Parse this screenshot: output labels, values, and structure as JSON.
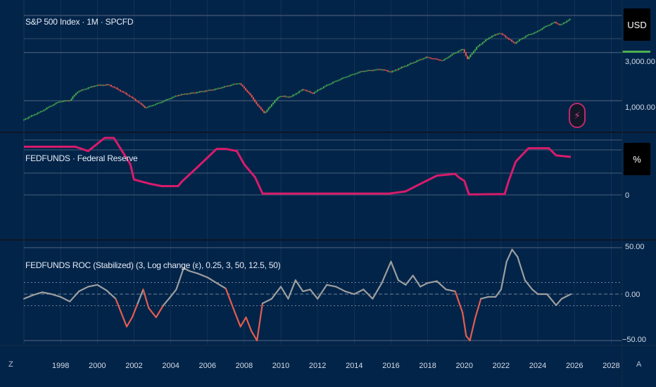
{
  "panes": {
    "price": {
      "title": "S&P 500 Index · 1M · SPCFD",
      "unit": "USD",
      "ticks": [
        "3,000.00",
        "1,000.00"
      ]
    },
    "fed": {
      "title": "FEDFUNDS · Federal Reserve",
      "unit": "%",
      "ticks": [
        "0"
      ]
    },
    "roc": {
      "title": "FEDFUNDS ROC (Stabilized) (3, Log change (ε), 0.25, 3, 50, 12.5, 50)",
      "ticks": [
        "50.00",
        "0.00",
        "−50.00"
      ]
    }
  },
  "controls": {
    "left": "Z",
    "right": "A"
  },
  "colors": {
    "background": "#022449",
    "grid": "#55657e",
    "candle_up": "#4caf50",
    "candle_down": "#ef5350",
    "fed_line": "#d81b6b",
    "roc_line": "#9e9e9e",
    "roc_negative": "#e35d4f",
    "level_line": "#4caf50"
  },
  "chart_data": [
    {
      "type": "line",
      "title": "S&P 500 Index · 1M · SPCFD",
      "ylabel": "USD",
      "yscale": "log",
      "ylim": [
        600,
        7000
      ],
      "xlim": [
        1996.0,
        2028.6
      ],
      "x_ticks": [
        1998,
        2000,
        2002,
        2004,
        2006,
        2008,
        2010,
        2012,
        2014,
        2016,
        2018,
        2020,
        2022,
        2024,
        2026,
        2028
      ],
      "y_ticks": [
        1000,
        3000
      ],
      "series": [
        {
          "x": [
            1996.0,
            1997.0,
            1998.0,
            1998.6,
            1999.0,
            2000.0,
            2000.7,
            2001.7,
            2002.7,
            2003.5,
            2004.5,
            2005.5,
            2006.5,
            2007.8,
            2008.8,
            2009.2,
            2010.0,
            2010.6,
            2011.3,
            2011.8,
            2012.5,
            2013.5,
            2014.5,
            2015.5,
            2016.1,
            2017.0,
            2018.0,
            2018.9,
            2019.5,
            2020.0,
            2020.25,
            2020.8,
            2021.5,
            2022.0,
            2022.8,
            2023.5,
            2024.0,
            2024.5,
            2025.0,
            2025.3,
            2025.8
          ],
          "y": [
            640,
            780,
            980,
            1010,
            1230,
            1420,
            1440,
            1150,
            850,
            960,
            1140,
            1210,
            1300,
            1500,
            900,
            750,
            1110,
            1090,
            1300,
            1180,
            1400,
            1690,
            1960,
            2050,
            1930,
            2270,
            2700,
            2500,
            2940,
            3250,
            2580,
            3450,
            4300,
            4700,
            3700,
            4450,
            4800,
            5450,
            6000,
            5600,
            6400
          ]
        }
      ]
    },
    {
      "type": "line",
      "title": "FEDFUNDS · Federal Reserve",
      "ylabel": "%",
      "ylim": [
        0,
        6.5
      ],
      "xlim": [
        1996.0,
        2028.6
      ],
      "y_ticks": [
        0
      ],
      "series": [
        {
          "x": [
            1996.0,
            1998.8,
            1999.5,
            2000.4,
            2000.9,
            2001.2,
            2001.8,
            2002.0,
            2002.9,
            2003.5,
            2004.4,
            2004.6,
            2005.5,
            2006.5,
            2007.0,
            2007.6,
            2008.0,
            2008.6,
            2009.0,
            2015.9,
            2016.8,
            2017.5,
            2018.5,
            2019.5,
            2019.7,
            2020.0,
            2020.25,
            2022.2,
            2022.4,
            2022.8,
            2023.5,
            2024.6,
            2025.0,
            2025.8
          ],
          "y": [
            5.5,
            5.5,
            5.0,
            6.5,
            6.5,
            5.5,
            3.5,
            1.75,
            1.25,
            1.0,
            1.0,
            1.5,
            3.25,
            5.25,
            5.25,
            5.0,
            3.5,
            2.0,
            0.15,
            0.15,
            0.4,
            1.15,
            2.2,
            2.4,
            2.0,
            1.6,
            0.05,
            0.1,
            1.5,
            3.8,
            5.33,
            5.33,
            4.5,
            4.33
          ]
        }
      ]
    },
    {
      "type": "line",
      "title": "FEDFUNDS ROC (Stabilized) (3, Log change (ε), 0.25, 3, 50, 12.5, 50)",
      "ylim": [
        -50,
        50
      ],
      "xlim": [
        1996.0,
        2028.6
      ],
      "y_ticks": [
        50,
        0,
        -50
      ],
      "reference_lines": [
        12.5,
        0,
        -12.5
      ],
      "series": [
        {
          "x": [
            1996.0,
            1996.5,
            1997.0,
            1997.5,
            1998.0,
            1998.5,
            1999.0,
            1999.5,
            2000.0,
            2000.5,
            2001.0,
            2001.3,
            2001.6,
            2001.9,
            2002.2,
            2002.5,
            2002.8,
            2003.2,
            2003.6,
            2003.9,
            2004.3,
            2004.7,
            2005.0,
            2005.5,
            2006.0,
            2006.5,
            2007.0,
            2007.5,
            2007.8,
            2008.1,
            2008.4,
            2008.7,
            2009.0,
            2009.5,
            2010.0,
            2010.4,
            2010.8,
            2011.2,
            2011.6,
            2012.0,
            2012.5,
            2013.0,
            2013.5,
            2014.0,
            2014.5,
            2015.0,
            2015.5,
            2016.0,
            2016.4,
            2016.8,
            2017.2,
            2017.6,
            2018.0,
            2018.5,
            2019.0,
            2019.5,
            2019.9,
            2020.1,
            2020.3,
            2020.6,
            2020.9,
            2021.3,
            2021.7,
            2022.0,
            2022.3,
            2022.6,
            2022.9,
            2023.3,
            2023.7,
            2024.0,
            2024.5,
            2025.0,
            2025.3,
            2025.8
          ],
          "y": [
            -5,
            -1,
            2,
            0,
            -3,
            -8,
            3,
            8,
            10,
            4,
            -5,
            -20,
            -35,
            -25,
            -10,
            5,
            -15,
            -25,
            -12,
            -5,
            5,
            28,
            25,
            22,
            18,
            12,
            6,
            -20,
            -35,
            -25,
            -40,
            -50,
            -10,
            -5,
            8,
            -5,
            15,
            3,
            5,
            -5,
            10,
            8,
            3,
            0,
            5,
            -5,
            12,
            35,
            15,
            10,
            20,
            8,
            12,
            14,
            5,
            3,
            -20,
            -45,
            -50,
            -25,
            -5,
            -3,
            -3,
            5,
            35,
            48,
            40,
            15,
            5,
            0,
            0,
            -12,
            -5,
            0
          ]
        }
      ]
    }
  ],
  "x_tick_labels": [
    "1998",
    "2000",
    "2002",
    "2004",
    "2006",
    "2008",
    "2010",
    "2012",
    "2014",
    "2016",
    "2018",
    "2020",
    "2022",
    "2024",
    "2026",
    "2028"
  ]
}
